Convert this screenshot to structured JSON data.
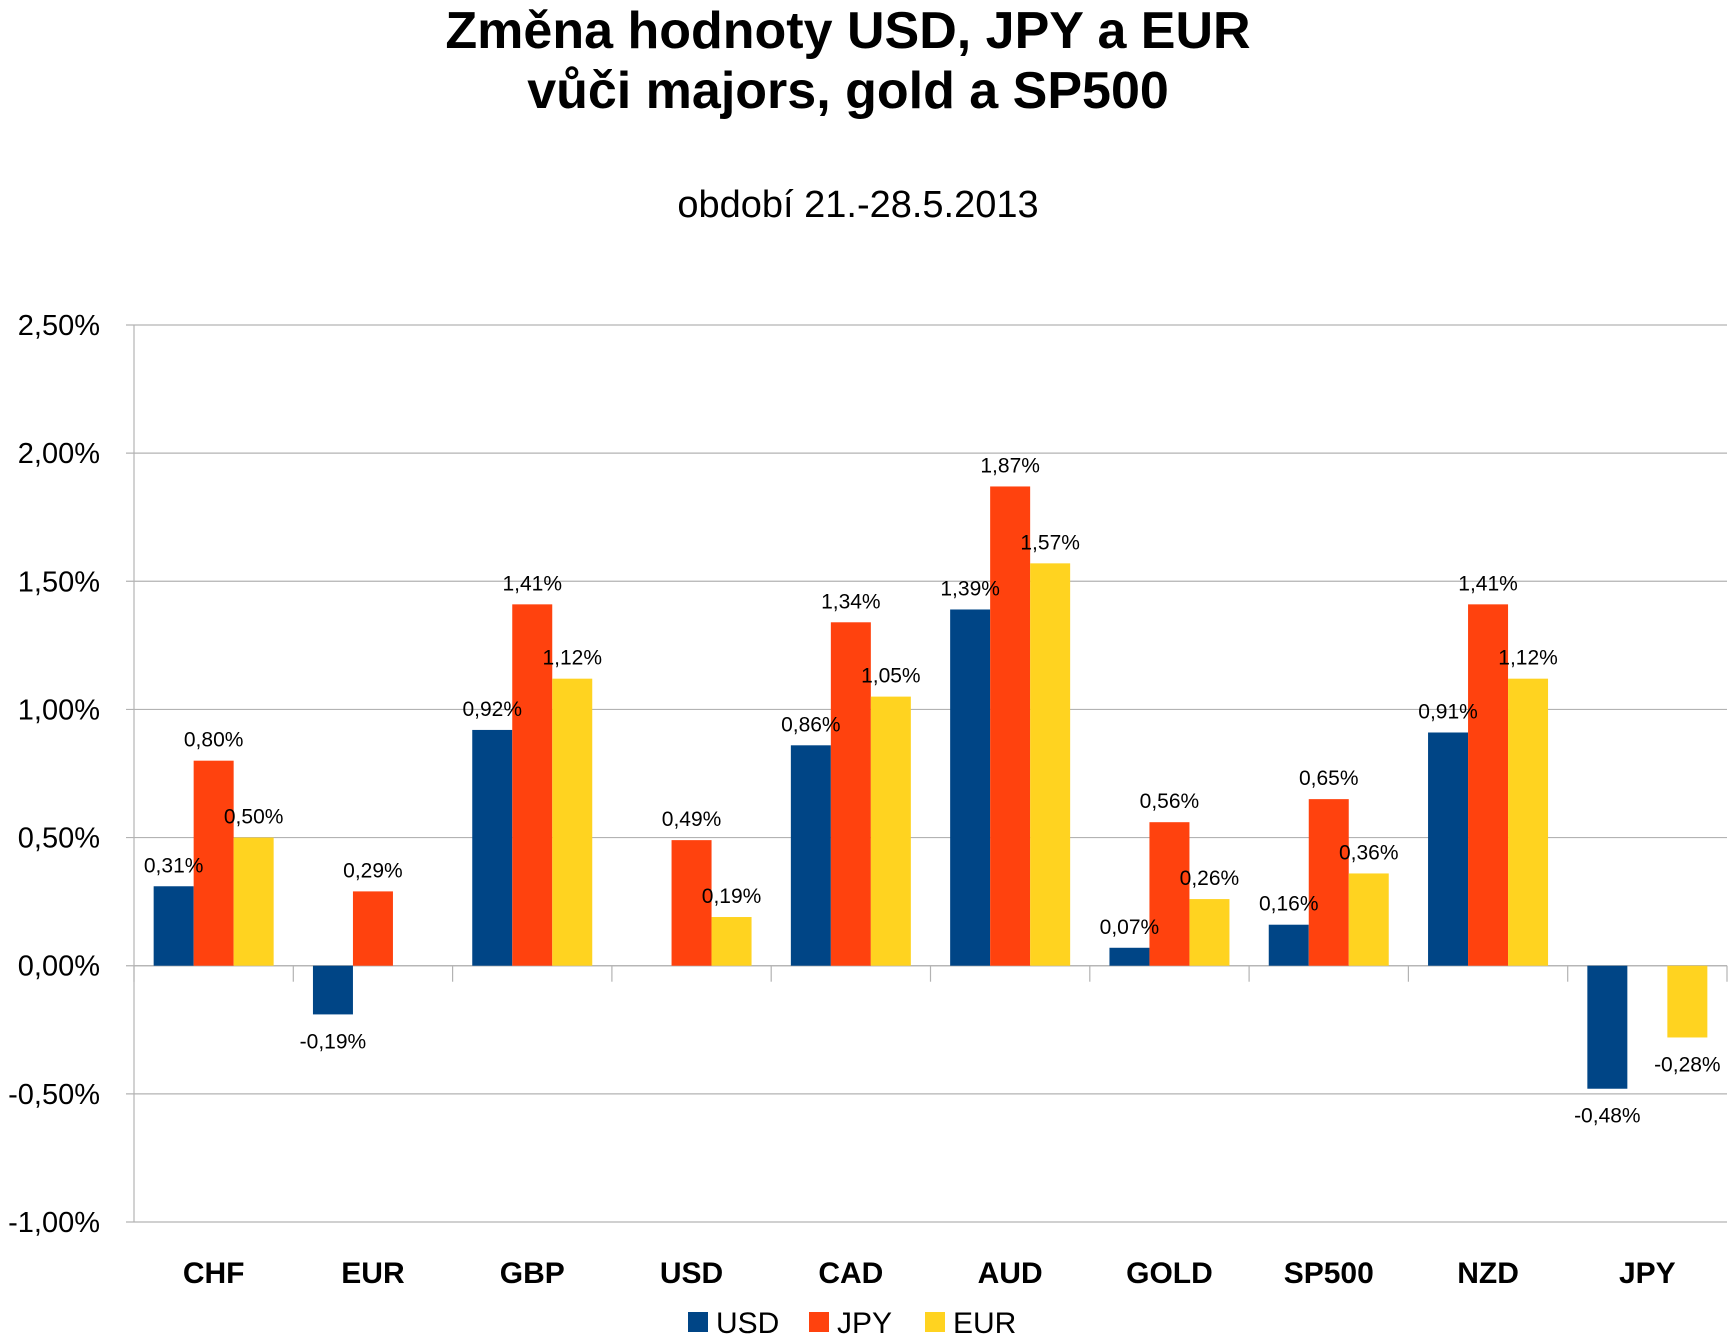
{
  "chart_data": {
    "type": "bar",
    "title_line1": "Změna hodnoty USD, JPY a EUR",
    "title_line2": "vůči majors, gold a SP500",
    "subtitle": "období 21.-28.5.2013",
    "xlabel": "",
    "ylabel": "",
    "ylim": [
      -0.01,
      0.025
    ],
    "ytick_step": 0.005,
    "ytick_labels": [
      "-1,00%",
      "-0,50%",
      "0,00%",
      "0,50%",
      "1,00%",
      "1,50%",
      "2,00%",
      "2,50%"
    ],
    "categories": [
      "CHF",
      "EUR",
      "GBP",
      "USD",
      "CAD",
      "AUD",
      "GOLD",
      "SP500",
      "NZD",
      "JPY"
    ],
    "series": [
      {
        "name": "USD",
        "color": "#004586",
        "values": [
          0.0031,
          -0.0019,
          0.0092,
          null,
          0.0086,
          0.0139,
          0.0007,
          0.0016,
          0.0091,
          -0.0048
        ],
        "labels": [
          "0,31%",
          "-0,19%",
          "0,92%",
          "",
          "0,86%",
          "1,39%",
          "0,07%",
          "0,16%",
          "0,91%",
          "-0,48%"
        ]
      },
      {
        "name": "JPY",
        "color": "#ff420e",
        "values": [
          0.008,
          0.0029,
          0.0141,
          0.0049,
          0.0134,
          0.0187,
          0.0056,
          0.0065,
          0.0141,
          null
        ],
        "labels": [
          "0,80%",
          "0,29%",
          "1,41%",
          "0,49%",
          "1,34%",
          "1,87%",
          "0,56%",
          "0,65%",
          "1,41%",
          ""
        ]
      },
      {
        "name": "EUR",
        "color": "#ffd320",
        "values": [
          0.005,
          null,
          0.0112,
          0.0019,
          0.0105,
          0.0157,
          0.0026,
          0.0036,
          0.0112,
          -0.0028
        ],
        "labels": [
          "0,50%",
          "",
          "1,12%",
          "0,19%",
          "1,05%",
          "1,57%",
          "0,26%",
          "0,36%",
          "1,12%",
          "-0,28%"
        ]
      }
    ],
    "grid": true,
    "legend_position": "bottom"
  }
}
